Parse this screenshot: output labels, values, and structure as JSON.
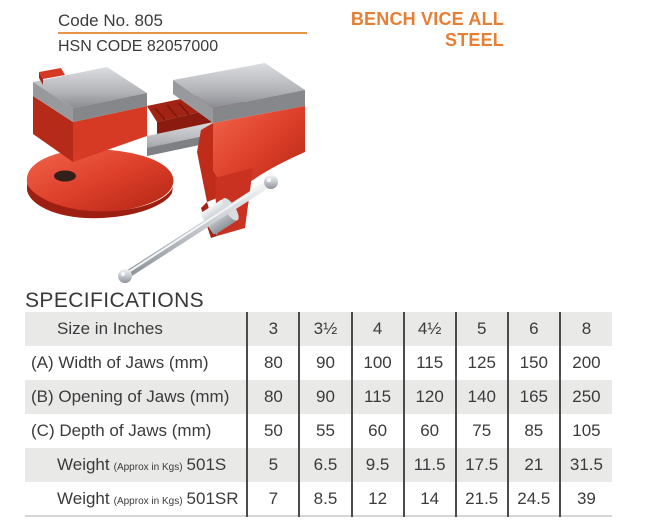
{
  "header": {
    "code": "Code No. 805",
    "title": "BENCH VICE ALL STEEL",
    "hsn": "HSN CODE 82057000"
  },
  "specifications": {
    "heading": "SPECIFICATIONS",
    "table": {
      "rows": [
        {
          "label": "Size in Inches",
          "sublabel": "",
          "model": "",
          "values": [
            "3",
            "3½",
            "4",
            "4½",
            "5",
            "6",
            "8"
          ]
        },
        {
          "label": "(A) Width of Jaws (mm)",
          "sublabel": "",
          "model": "",
          "values": [
            "80",
            "90",
            "100",
            "115",
            "125",
            "150",
            "200"
          ]
        },
        {
          "label": "(B) Opening of Jaws (mm)",
          "sublabel": "",
          "model": "",
          "values": [
            "80",
            "90",
            "115",
            "120",
            "140",
            "165",
            "250"
          ]
        },
        {
          "label": "(C) Depth of Jaws (mm)",
          "sublabel": "",
          "model": "",
          "values": [
            "50",
            "55",
            "60",
            "60",
            "75",
            "85",
            "105"
          ]
        },
        {
          "label": "Weight",
          "sublabel": "(Approx in Kgs)",
          "model": "501S",
          "values": [
            "5",
            "6.5",
            "9.5",
            "11.5",
            "17.5",
            "21",
            "31.5"
          ]
        },
        {
          "label": "Weight",
          "sublabel": "(Approx in Kgs)",
          "model": "501SR",
          "values": [
            "7",
            "8.5",
            "12",
            "14",
            "21.5",
            "24.5",
            "39"
          ]
        }
      ]
    }
  },
  "colors": {
    "accent_orange": "#E67E34",
    "vice_red": "#D63A24",
    "steel_gray": "#B2B4B8",
    "row_shade": "#E9E9E7"
  }
}
